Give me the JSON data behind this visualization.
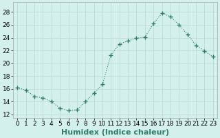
{
  "x": [
    0,
    1,
    2,
    3,
    4,
    5,
    6,
    7,
    8,
    9,
    10,
    11,
    12,
    13,
    14,
    15,
    16,
    17,
    18,
    19,
    20,
    21,
    22,
    23
  ],
  "y": [
    16.2,
    15.8,
    14.8,
    14.6,
    14.0,
    13.0,
    12.6,
    12.7,
    14.0,
    15.3,
    16.7,
    21.3,
    23.0,
    23.5,
    23.9,
    24.1,
    26.2,
    27.8,
    27.3,
    26.0,
    24.5,
    22.8,
    21.9,
    21.0
  ],
  "line_color": "#2e7d6e",
  "marker": "+",
  "marker_size": 4,
  "bg_color": "#d4f0ec",
  "grid_color": "#b8d8d4",
  "xlabel": "Humidex (Indice chaleur)",
  "xlabel_fontsize": 8,
  "tick_fontsize": 6.5,
  "ylim": [
    11.5,
    29.5
  ],
  "yticks": [
    12,
    14,
    16,
    18,
    20,
    22,
    24,
    26,
    28
  ],
  "xticks": [
    0,
    1,
    2,
    3,
    4,
    5,
    6,
    7,
    8,
    9,
    10,
    11,
    12,
    13,
    14,
    15,
    16,
    17,
    18,
    19,
    20,
    21,
    22,
    23
  ],
  "figwidth": 3.2,
  "figheight": 2.0,
  "dpi": 100
}
